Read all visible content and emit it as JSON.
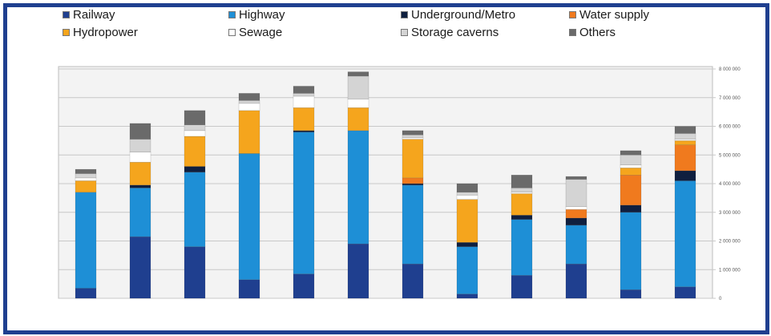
{
  "chart_data": {
    "type": "bar",
    "stacked": true,
    "title": "",
    "xlabel": "",
    "ylabel": "",
    "categories": [
      "",
      "",
      "",
      "",
      "",
      "",
      "",
      "",
      "",
      "",
      "",
      ""
    ],
    "ylim": [
      0,
      8000000
    ],
    "yticks": [
      "0",
      "1 000 000",
      "2 000 000",
      "3 000 000",
      "4 000 000",
      "5 000 000",
      "6 000 000",
      "7 000 000",
      "8 000 000"
    ],
    "ytick_values": [
      0,
      1000000,
      2000000,
      3000000,
      4000000,
      5000000,
      6000000,
      7000000,
      8000000
    ],
    "grid": true,
    "legend_position": "top",
    "series": [
      {
        "name": "Railway",
        "color": "#1f3f8f",
        "values": [
          350000,
          2150000,
          1800000,
          650000,
          850000,
          1900000,
          1200000,
          150000,
          800000,
          1200000,
          300000,
          400000
        ]
      },
      {
        "name": "Highway",
        "color": "#1e8fd6",
        "values": [
          3350000,
          1700000,
          2600000,
          4400000,
          4950000,
          3950000,
          2750000,
          1650000,
          1950000,
          1350000,
          2700000,
          3700000
        ]
      },
      {
        "name": "Underground/Metro",
        "color": "#0f1f3f",
        "values": [
          0,
          100000,
          200000,
          0,
          50000,
          0,
          50000,
          150000,
          150000,
          250000,
          250000,
          350000
        ]
      },
      {
        "name": "Water supply",
        "color": "#f07a1e",
        "values": [
          0,
          0,
          0,
          0,
          0,
          0,
          200000,
          0,
          0,
          300000,
          1050000,
          900000
        ]
      },
      {
        "name": "Hydropower",
        "color": "#f5a51d",
        "values": [
          400000,
          800000,
          1050000,
          1500000,
          800000,
          800000,
          1350000,
          1500000,
          750000,
          0,
          250000,
          150000
        ]
      },
      {
        "name": "Sewage",
        "color": "#ffffff",
        "values": [
          100000,
          350000,
          200000,
          250000,
          400000,
          300000,
          50000,
          150000,
          50000,
          100000,
          100000,
          50000
        ]
      },
      {
        "name": "Storage caverns",
        "color": "#d4d4d4",
        "values": [
          150000,
          450000,
          200000,
          100000,
          100000,
          800000,
          100000,
          100000,
          150000,
          950000,
          350000,
          200000
        ]
      },
      {
        "name": "Others",
        "color": "#6a6a6a",
        "values": [
          150000,
          550000,
          500000,
          250000,
          250000,
          150000,
          150000,
          300000,
          450000,
          100000,
          150000,
          250000
        ]
      }
    ]
  }
}
